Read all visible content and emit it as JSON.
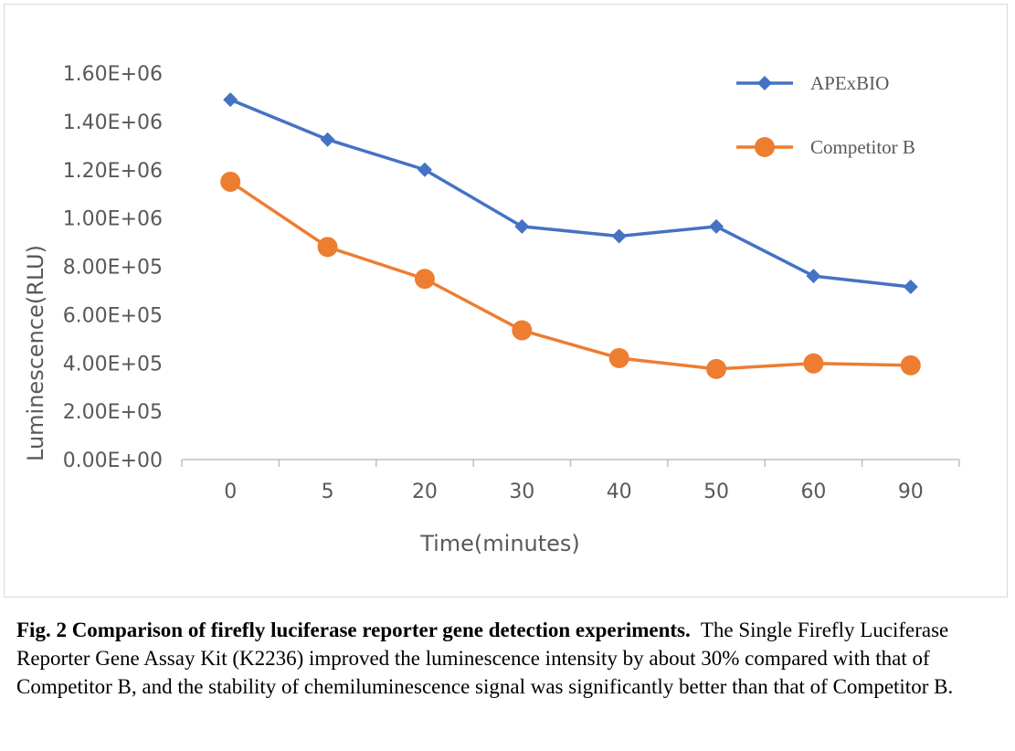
{
  "chart_data": {
    "type": "line",
    "categories": [
      "0",
      "5",
      "20",
      "30",
      "40",
      "50",
      "60",
      "90"
    ],
    "series": [
      {
        "name": "APExBIO",
        "values": [
          1490000,
          1325000,
          1200000,
          965000,
          925000,
          965000,
          760000,
          715000
        ],
        "color": "#4472C4",
        "marker": "diamond"
      },
      {
        "name": "Competitor B",
        "values": [
          1150000,
          880000,
          748000,
          535000,
          420000,
          375000,
          398000,
          390000
        ],
        "color": "#ED7D31",
        "marker": "circle"
      }
    ],
    "yticks": [
      "0.00E+00",
      "2.00E+05",
      "4.00E+05",
      "6.00E+05",
      "8.00E+05",
      "1.00E+06",
      "1.20E+06",
      "1.40E+06",
      "1.60E+06"
    ],
    "ylim": [
      0,
      1600000
    ],
    "ylabel": "Luminescence(RLU)",
    "xlabel": "Time(minutes)",
    "legend_position": "top-right",
    "grid": false
  },
  "caption": {
    "bold": "Fig. 2 Comparison of firefly luciferase reporter gene detection experiments.",
    "text": "The Single Firefly Luciferase Reporter Gene Assay Kit (K2236) improved the luminescence intensity by about 30% compared with that of Competitor B, and the stability of chemiluminescence signal was significantly better than that of Competitor B."
  }
}
